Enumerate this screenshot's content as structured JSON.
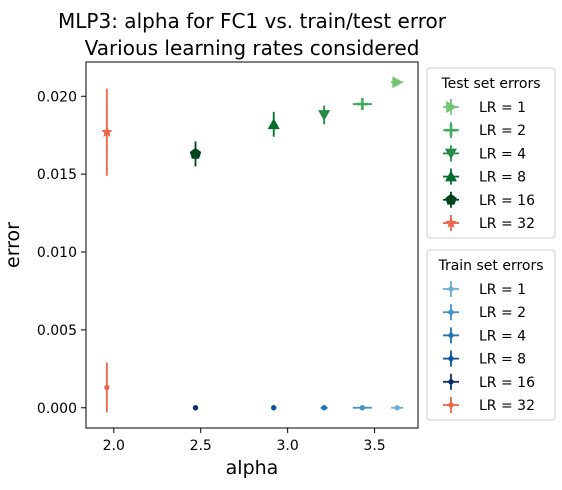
{
  "chart_data": {
    "type": "scatter",
    "title": "MLP3: alpha for FC1 vs. train/test error",
    "subtitle": "Various learning rates considered",
    "xlabel": "alpha",
    "ylabel": "error",
    "xlim": [
      1.84,
      3.75
    ],
    "ylim": [
      -0.0013,
      0.0222
    ],
    "xticks": [
      2.0,
      2.5,
      3.0,
      3.5
    ],
    "xtick_labels": [
      "2.0",
      "2.5",
      "3.0",
      "3.5"
    ],
    "yticks": [
      0.0,
      0.005,
      0.01,
      0.015,
      0.02
    ],
    "ytick_labels": [
      "0.000",
      "0.005",
      "0.010",
      "0.015",
      "0.020"
    ],
    "grid": false,
    "legends": [
      {
        "title": "Test set errors",
        "placement": "right-top",
        "entries": [
          "LR = 1",
          "LR = 2",
          "LR = 4",
          "LR = 8",
          "LR = 16",
          "LR = 32"
        ]
      },
      {
        "title": "Train set errors",
        "placement": "right-middle",
        "entries": [
          "LR = 1",
          "LR = 2",
          "LR = 4",
          "LR = 8",
          "LR = 16",
          "LR = 32"
        ]
      }
    ],
    "series": [
      {
        "group": "test",
        "name": "LR = 1",
        "color": "#74c476",
        "marker": "triangle-right",
        "x": 3.63,
        "y": 0.0209,
        "xerr": 0.035,
        "yerr": 0.0002
      },
      {
        "group": "test",
        "name": "LR = 2",
        "color": "#41ab5d",
        "marker": "plus",
        "x": 3.43,
        "y": 0.0195,
        "xerr": 0.055,
        "yerr": 0.0003
      },
      {
        "group": "test",
        "name": "LR = 4",
        "color": "#238b45",
        "marker": "triangle-down",
        "x": 3.21,
        "y": 0.0188,
        "xerr": 0.0,
        "yerr": 0.0006
      },
      {
        "group": "test",
        "name": "LR = 8",
        "color": "#006d2c",
        "marker": "triangle-up",
        "x": 2.92,
        "y": 0.0182,
        "xerr": 0.0,
        "yerr": 0.0008
      },
      {
        "group": "test",
        "name": "LR = 16",
        "color": "#00441b",
        "marker": "pentagon",
        "x": 2.47,
        "y": 0.0163,
        "xerr": 0.0,
        "yerr": 0.0008
      },
      {
        "group": "test",
        "name": "LR = 32",
        "color": "#ef6548",
        "marker": "star",
        "x": 1.96,
        "y": 0.0177,
        "xerr": 0.0,
        "yerr": 0.0028
      },
      {
        "group": "train",
        "name": "LR = 1",
        "color": "#6baed6",
        "marker": "point",
        "x": 3.63,
        "y": 0.0,
        "xerr": 0.035,
        "yerr": 0.0
      },
      {
        "group": "train",
        "name": "LR = 2",
        "color": "#4292c6",
        "marker": "point",
        "x": 3.43,
        "y": 0.0,
        "xerr": 0.055,
        "yerr": 0.0
      },
      {
        "group": "train",
        "name": "LR = 4",
        "color": "#2171b5",
        "marker": "point",
        "x": 3.21,
        "y": 0.0,
        "xerr": 0.02,
        "yerr": 0.0
      },
      {
        "group": "train",
        "name": "LR = 8",
        "color": "#08519c",
        "marker": "point",
        "x": 2.92,
        "y": 0.0,
        "xerr": 0.0,
        "yerr": 0.0
      },
      {
        "group": "train",
        "name": "LR = 16",
        "color": "#08306b",
        "marker": "point",
        "x": 2.47,
        "y": 0.0,
        "xerr": 0.0,
        "yerr": 0.0
      },
      {
        "group": "train",
        "name": "LR = 32",
        "color": "#ef6548",
        "marker": "point",
        "x": 1.96,
        "y": 0.0013,
        "xerr": 0.0,
        "yerr": 0.0016
      }
    ]
  }
}
